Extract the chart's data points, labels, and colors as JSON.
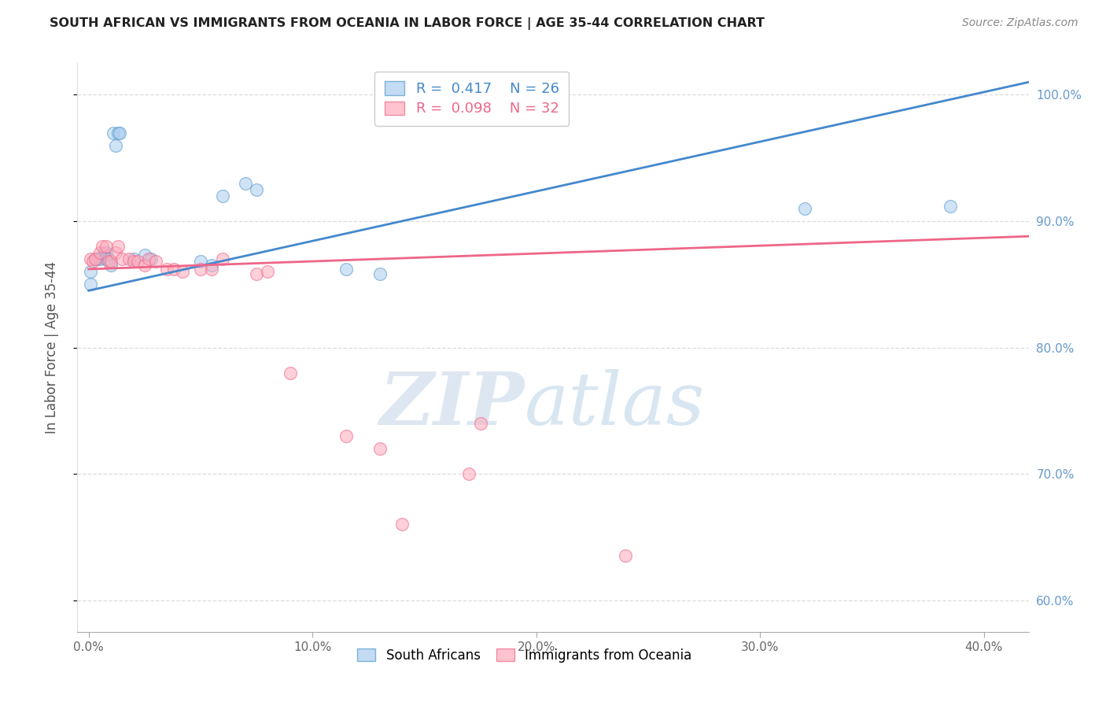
{
  "title": "SOUTH AFRICAN VS IMMIGRANTS FROM OCEANIA IN LABOR FORCE | AGE 35-44 CORRELATION CHART",
  "source": "Source: ZipAtlas.com",
  "ylabel": "In Labor Force | Age 35-44",
  "xlabel_ticks": [
    "0.0%",
    "10.0%",
    "20.0%",
    "30.0%",
    "40.0%"
  ],
  "xlabel_vals": [
    0.0,
    0.1,
    0.2,
    0.3,
    0.4
  ],
  "ylabel_ticks": [
    "100.0%",
    "90.0%",
    "80.0%",
    "70.0%",
    "60.0%"
  ],
  "ylabel_vals": [
    1.0,
    0.9,
    0.8,
    0.7,
    0.6
  ],
  "xlim": [
    -0.005,
    0.42
  ],
  "ylim": [
    0.575,
    1.025
  ],
  "blue_R": 0.417,
  "blue_N": 26,
  "pink_R": 0.098,
  "pink_N": 32,
  "blue_scatter_x": [
    0.001,
    0.001,
    0.003,
    0.004,
    0.005,
    0.007,
    0.008,
    0.008,
    0.009,
    0.01,
    0.011,
    0.012,
    0.013,
    0.014,
    0.02,
    0.025,
    0.028,
    0.05,
    0.055,
    0.06,
    0.07,
    0.075,
    0.115,
    0.13,
    0.32,
    0.385
  ],
  "blue_scatter_y": [
    0.85,
    0.86,
    0.87,
    0.87,
    0.87,
    0.875,
    0.875,
    0.87,
    0.87,
    0.865,
    0.97,
    0.96,
    0.97,
    0.97,
    0.87,
    0.873,
    0.87,
    0.868,
    0.865,
    0.92,
    0.93,
    0.925,
    0.862,
    0.858,
    0.91,
    0.912
  ],
  "pink_scatter_x": [
    0.001,
    0.002,
    0.003,
    0.005,
    0.006,
    0.008,
    0.009,
    0.01,
    0.012,
    0.013,
    0.015,
    0.018,
    0.02,
    0.022,
    0.025,
    0.027,
    0.03,
    0.035,
    0.038,
    0.042,
    0.05,
    0.055,
    0.06,
    0.075,
    0.08,
    0.09,
    0.115,
    0.13,
    0.14,
    0.17,
    0.175,
    0.24
  ],
  "pink_scatter_y": [
    0.87,
    0.868,
    0.87,
    0.875,
    0.88,
    0.88,
    0.868,
    0.868,
    0.875,
    0.88,
    0.87,
    0.87,
    0.868,
    0.868,
    0.865,
    0.87,
    0.868,
    0.862,
    0.862,
    0.86,
    0.862,
    0.862,
    0.87,
    0.858,
    0.86,
    0.78,
    0.73,
    0.72,
    0.66,
    0.7,
    0.74,
    0.635
  ],
  "blue_line_x": [
    0.0,
    0.42
  ],
  "blue_line_y": [
    0.845,
    1.01
  ],
  "pink_line_x": [
    0.0,
    0.42
  ],
  "pink_line_y": [
    0.862,
    0.888
  ],
  "watermark_zip": "ZIP",
  "watermark_atlas": "atlas",
  "background_color": "#ffffff",
  "blue_color": "#aaccee",
  "blue_edge_color": "#5599cc",
  "pink_color": "#ffaabb",
  "pink_edge_color": "#ee6688",
  "blue_line_color": "#4488cc",
  "pink_line_color": "#ee6688",
  "grid_color": "#dddddd",
  "right_tick_color": "#6699cc",
  "title_color": "#222222",
  "source_color": "#888888",
  "scatter_size": 130,
  "scatter_alpha": 0.55,
  "scatter_linewidth": 1.0,
  "line_width": 2.0
}
